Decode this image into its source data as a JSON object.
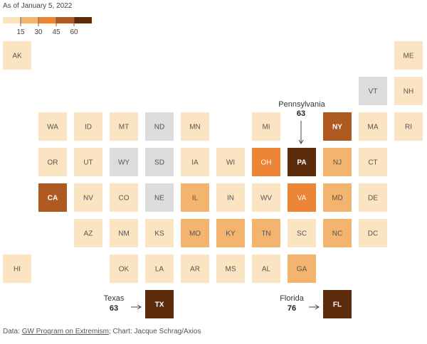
{
  "header": {
    "date_label": "As of January 5, 2022"
  },
  "legend": {
    "ticks": [
      "15",
      "30",
      "45",
      "60"
    ],
    "colors": [
      "#fbe4c1",
      "#f3b46f",
      "#ec8535",
      "#ae5a22",
      "#5c2c0d"
    ]
  },
  "colors": {
    "no_data": "#dcdcdc",
    "levels": [
      "#fbe4c1",
      "#f3b46f",
      "#ec8535",
      "#ae5a22",
      "#5c2c0d"
    ],
    "label_dark": "#555555",
    "label_light": "#ffffff"
  },
  "chart_data": {
    "type": "heatmap",
    "title": "",
    "note": "As of January 5, 2022",
    "legend_breaks": [
      15,
      30,
      45,
      60
    ],
    "states": [
      {
        "abbr": "AK",
        "level": 0
      },
      {
        "abbr": "ME",
        "level": 0
      },
      {
        "abbr": "VT",
        "level": -1
      },
      {
        "abbr": "NH",
        "level": 0
      },
      {
        "abbr": "WA",
        "level": 0
      },
      {
        "abbr": "ID",
        "level": 0
      },
      {
        "abbr": "MT",
        "level": 0
      },
      {
        "abbr": "ND",
        "level": -1
      },
      {
        "abbr": "MN",
        "level": 0
      },
      {
        "abbr": "MI",
        "level": 0
      },
      {
        "abbr": "NY",
        "level": 3
      },
      {
        "abbr": "MA",
        "level": 0
      },
      {
        "abbr": "RI",
        "level": 0
      },
      {
        "abbr": "OR",
        "level": 0
      },
      {
        "abbr": "UT",
        "level": 0
      },
      {
        "abbr": "WY",
        "level": -1
      },
      {
        "abbr": "SD",
        "level": -1
      },
      {
        "abbr": "IA",
        "level": 0
      },
      {
        "abbr": "WI",
        "level": 0
      },
      {
        "abbr": "OH",
        "level": 2
      },
      {
        "abbr": "PA",
        "level": 4
      },
      {
        "abbr": "NJ",
        "level": 1
      },
      {
        "abbr": "CT",
        "level": 0
      },
      {
        "abbr": "CA",
        "level": 3
      },
      {
        "abbr": "NV",
        "level": 0
      },
      {
        "abbr": "CO",
        "level": 0
      },
      {
        "abbr": "NE",
        "level": -1
      },
      {
        "abbr": "IL",
        "level": 1
      },
      {
        "abbr": "IN",
        "level": 0
      },
      {
        "abbr": "WV",
        "level": 0
      },
      {
        "abbr": "VA",
        "level": 2
      },
      {
        "abbr": "MD",
        "level": 1
      },
      {
        "abbr": "DE",
        "level": 0
      },
      {
        "abbr": "AZ",
        "level": 0
      },
      {
        "abbr": "NM",
        "level": 0
      },
      {
        "abbr": "KS",
        "level": 0
      },
      {
        "abbr": "MO",
        "level": 1
      },
      {
        "abbr": "KY",
        "level": 1
      },
      {
        "abbr": "TN",
        "level": 1
      },
      {
        "abbr": "SC",
        "level": 0
      },
      {
        "abbr": "NC",
        "level": 1
      },
      {
        "abbr": "DC",
        "level": 0
      },
      {
        "abbr": "HI",
        "level": 0
      },
      {
        "abbr": "OK",
        "level": 0
      },
      {
        "abbr": "LA",
        "level": 0
      },
      {
        "abbr": "AR",
        "level": 0
      },
      {
        "abbr": "MS",
        "level": 0
      },
      {
        "abbr": "AL",
        "level": 0
      },
      {
        "abbr": "GA",
        "level": 1
      },
      {
        "abbr": "TX",
        "level": 4
      },
      {
        "abbr": "FL",
        "level": 4
      }
    ],
    "callouts": [
      {
        "state": "PA",
        "name": "Pennsylvania",
        "value": 63
      },
      {
        "state": "TX",
        "name": "Texas",
        "value": 63
      },
      {
        "state": "FL",
        "name": "Florida",
        "value": 76
      }
    ]
  },
  "footer": {
    "prefix": "Data: ",
    "source_link": "GW Program on Extremism",
    "suffix": "; Chart: Jacque Schrag/Axios"
  }
}
